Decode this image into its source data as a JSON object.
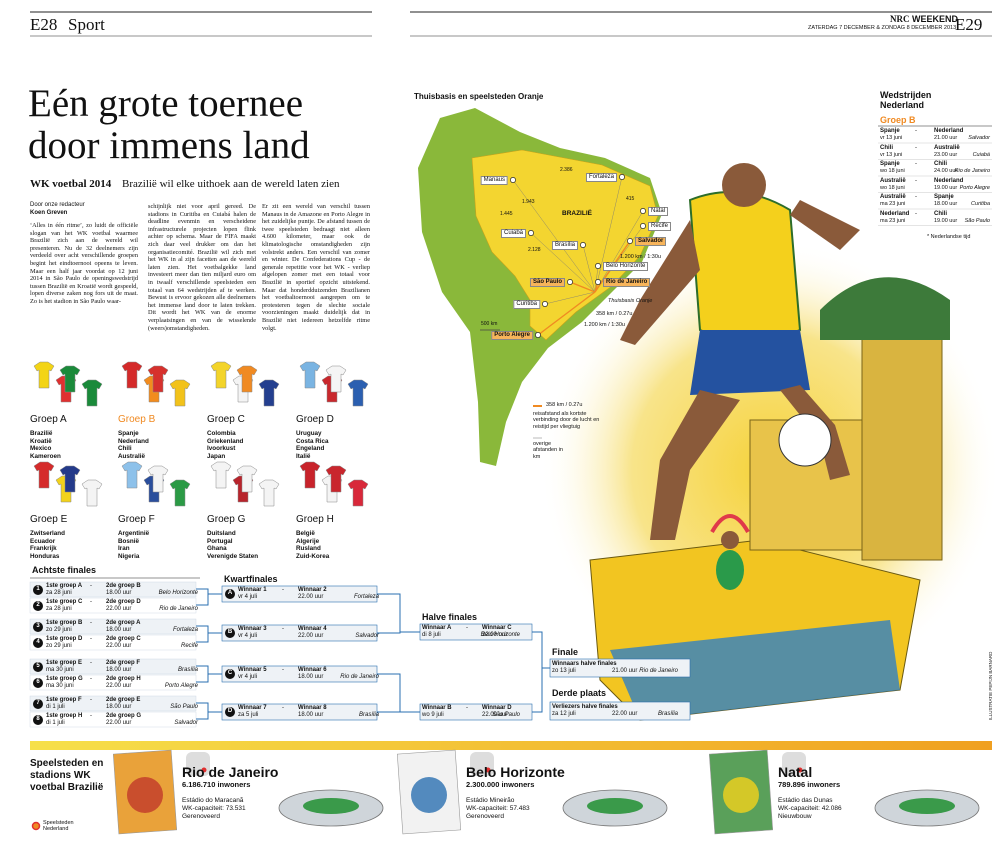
{
  "header": {
    "left_page": "E28",
    "left_section": "Sport",
    "brand_bold": "NRC",
    "brand": "WEEKEND",
    "date": "ZATERDAG 7 DECEMBER & ZONDAG 8 DECEMBER 2013",
    "right_page": "E29"
  },
  "article": {
    "title_line1": "Eén grote toernee",
    "title_line2": "door immens land",
    "kicker": "WK voetbal 2014",
    "subtitle": "Brazilië wil elke uithoek aan de wereld laten zien",
    "byline_intro": "Door onze redacteur",
    "author": "Koen Greven",
    "columns": [
      "‘Alles in één ritme’, zo luidt de officiële slogan van het WK voetbal waarmee Brazilië zich aan de wereld wil presenteren. Nu de 32 deelnemers zijn verdeeld over acht verschillende groepen begint het eindtoernooi opeens te leven. Maar een half jaar voordat op 12 juni 2014 in São Paulo de openingswedstrijd tussen Brazilië en Kroatië wordt gespeeld, lopen diverse zaken nog fors uit de maat. Zo is het stadion in São Paulo waar-",
      "schijnlijk niet voor april gereed. De stadions in Curitiba en Cuiabá halen de deadline evenmin en verscheidene infrastructurele projecten lopen flink achter op schema. Maar de FIFA maakt zich daar veel drukker om dan het organisatiecomité. Brazilië wil zich met het WK in al zijn facetten aan de wereld laten zien. Het voetbalgekke land investeert meer dan tien miljard euro om in twaalf verschillende speelsteden een totaal van 64 wedstrijden af te werken. Bewust is ervoor gekozen alle deelnemers het immense land door te laten trekken. Dit wordt het WK van de enorme verplaatsingen en van de wisselende (weers)omstandigheden.",
      "Er zit een wereld van verschil tussen Manaus in de Amazone en Porto Alegre in het zuidelijke puntje. De afstand tussen de twee speelsteden bedraagt niet alleen 4.600 kilometer, maar ook de klimatologische omstandigheden zijn volstrekt anders. Een verschil van zomer en winter. De Confederations Cup - de generale repetitie voor het WK - verliep afgelopen zomer met een totaal voor Brazilië in sportief opzicht uitstekend. Maar dat honderdduizenden Brazilianen het voetbaltoernooi aangrepen om te protesteren tegen de slechte sociale voorzieningen maakt duidelijk dat in Brazilië niet iedereen hetzelfde ritme volgt."
    ]
  },
  "groups": [
    {
      "title": "Groep A",
      "teams": [
        {
          "name": "Brazilië",
          "shirt": "#f3d416"
        },
        {
          "name": "Kroatië",
          "shirt": "#e03030"
        },
        {
          "name": "Mexico",
          "shirt": "#1b8a3a"
        },
        {
          "name": "Kameroen",
          "shirt": "#1a8a3a"
        }
      ]
    },
    {
      "title": "Groep B",
      "highlight": true,
      "teams": [
        {
          "name": "Spanje",
          "shirt": "#d42a2a"
        },
        {
          "name": "Nederland",
          "shirt": "#f28c1e"
        },
        {
          "name": "Chili",
          "shirt": "#d6312d"
        },
        {
          "name": "Australië",
          "shirt": "#f2c21a"
        }
      ]
    },
    {
      "title": "Groep C",
      "teams": [
        {
          "name": "Colombia",
          "shirt": "#f3d42a"
        },
        {
          "name": "Griekenland",
          "shirt": "#f4f4f4"
        },
        {
          "name": "Ivoorkust",
          "shirt": "#f08a22"
        },
        {
          "name": "Japan",
          "shirt": "#243f8f"
        }
      ]
    },
    {
      "title": "Groep D",
      "teams": [
        {
          "name": "Uruguay",
          "shirt": "#7ab4e2"
        },
        {
          "name": "Costa Rica",
          "shirt": "#c9282d"
        },
        {
          "name": "Engeland",
          "shirt": "#f5f5f5"
        },
        {
          "name": "Italië",
          "shirt": "#2b5fb0"
        }
      ]
    },
    {
      "title": "Groep E",
      "teams": [
        {
          "name": "Zwitserland",
          "shirt": "#d52b2b"
        },
        {
          "name": "Ecuador",
          "shirt": "#f2d21b"
        },
        {
          "name": "Frankrijk",
          "shirt": "#243a8a"
        },
        {
          "name": "Honduras",
          "shirt": "#f4f4f4"
        }
      ]
    },
    {
      "title": "Groep F",
      "teams": [
        {
          "name": "Argentinië",
          "shirt": "#8dc1ea"
        },
        {
          "name": "Bosnië",
          "shirt": "#2a4e9c"
        },
        {
          "name": "Iran",
          "shirt": "#f4f4f4"
        },
        {
          "name": "Nigeria",
          "shirt": "#2b9a45"
        }
      ]
    },
    {
      "title": "Groep G",
      "teams": [
        {
          "name": "Duitsland",
          "shirt": "#f4f4f4"
        },
        {
          "name": "Portugal",
          "shirt": "#b8242c"
        },
        {
          "name": "Ghana",
          "shirt": "#f4f4f4"
        },
        {
          "name": "Verenigde Staten",
          "shirt": "#f4f4f4"
        }
      ]
    },
    {
      "title": "Groep H",
      "teams": [
        {
          "name": "België",
          "shirt": "#c8232b"
        },
        {
          "name": "Algerije",
          "shirt": "#f4f4f4"
        },
        {
          "name": "Rusland",
          "shirt": "#c9262d"
        },
        {
          "name": "Zuid-Korea",
          "shirt": "#d8283a"
        }
      ]
    }
  ],
  "knockout": {
    "separator": "-",
    "round_of_16": {
      "title": "Achtste finales",
      "matches": [
        {
          "number": 1,
          "home": "1ste groep A",
          "away": "2de groep B",
          "date": "za 28 juni",
          "time": "18.00 uur",
          "venue": "Belo Horizonte"
        },
        {
          "number": 2,
          "home": "1ste groep C",
          "away": "2de groep D",
          "date": "za 28 juni",
          "time": "22.00 uur",
          "venue": "Rio de Janeiro"
        },
        {
          "number": 3,
          "home": "1ste groep B",
          "away": "2de groep A",
          "date": "zo 29 juni",
          "time": "18.00 uur",
          "venue": "Fortaleza"
        },
        {
          "number": 4,
          "home": "1ste groep D",
          "away": "2de groep C",
          "date": "zo 29 juni",
          "time": "22.00 uur",
          "venue": "Recife"
        },
        {
          "number": 5,
          "home": "1ste groep E",
          "away": "2de groep F",
          "date": "ma 30 juni",
          "time": "18.00 uur",
          "venue": "Brasília"
        },
        {
          "number": 6,
          "home": "1ste groep G",
          "away": "2de groep H",
          "date": "ma 30 juni",
          "time": "22.00 uur",
          "venue": "Porto Alegre"
        },
        {
          "number": 7,
          "home": "1ste groep F",
          "away": "2de groep E",
          "date": "di 1 juli",
          "time": "18.00 uur",
          "venue": "São Paulo"
        },
        {
          "number": 8,
          "home": "1ste groep H",
          "away": "2de groep G",
          "date": "di 1 juli",
          "time": "22.00 uur",
          "venue": "Salvador"
        }
      ]
    },
    "quarter": {
      "title": "Kwartfinales",
      "matches": [
        {
          "number": "A",
          "home": "Winnaar 1",
          "away": "Winnaar 2",
          "date": "vr 4 juli",
          "time": "22.00 uur",
          "venue": "Fortaleza"
        },
        {
          "number": "B",
          "home": "Winnaar 3",
          "away": "Winnaar 4",
          "date": "vr 4 juli",
          "time": "22.00 uur",
          "venue": "Salvador"
        },
        {
          "number": "C",
          "home": "Winnaar 5",
          "away": "Winnaar 6",
          "date": "vr 4 juli",
          "time": "18.00 uur",
          "venue": "Rio de Janeiro"
        },
        {
          "number": "D",
          "home": "Winnaar 7",
          "away": "Winnaar 8",
          "date": "za 5 juli",
          "time": "18.00 uur",
          "venue": "Brasília"
        }
      ]
    },
    "semi": {
      "title": "Halve finales",
      "matches": [
        {
          "home": "Winnaar A",
          "away": "Winnaar C",
          "date": "di 8 juli",
          "time": "22.00 uur",
          "venue": "Belo Horizonte"
        },
        {
          "home": "Winnaar B",
          "away": "Winnaar D",
          "date": "wo 9 juli",
          "time": "22.00 uur",
          "venue": "São Paulo"
        }
      ]
    },
    "final": {
      "title": "Finale",
      "match": {
        "home": "Winnaars halve finales",
        "date": "zo 13 juli",
        "time": "21.00 uur",
        "venue": "Rio de Janeiro"
      }
    },
    "third": {
      "title": "Derde plaats",
      "match": {
        "home": "Verliezers halve finales",
        "date": "za 12 juli",
        "time": "22.00 uur",
        "venue": "Brasília"
      }
    }
  },
  "map": {
    "title": "Thuisbasis en speelsteden Oranje",
    "country": "BRAZILIË",
    "scale": "500 km",
    "cities": [
      {
        "name": "Manaus"
      },
      {
        "name": "Fortaleza"
      },
      {
        "name": "Natal"
      },
      {
        "name": "Recife"
      },
      {
        "name": "Salvador",
        "oranje": true
      },
      {
        "name": "Brasília"
      },
      {
        "name": "Cuiabá"
      },
      {
        "name": "Belo Horizonte"
      },
      {
        "name": "Rio de Janeiro",
        "oranje": true
      },
      {
        "name": "São Paulo",
        "oranje": true
      },
      {
        "name": "Curitiba"
      },
      {
        "name": "Porto Alegre",
        "oranje": true
      }
    ],
    "distances": [
      "2.386",
      "1.943",
      "1.445",
      "2.128",
      "415"
    ],
    "routes": [
      "1.200 km / 1:30u",
      "358 km / 0.27u",
      "1.200 km / 1:30u"
    ],
    "base": "Thuisbasis Oranje",
    "legend": {
      "flight_sample": "358 km / 0.27u",
      "flight_text": "reisafstand als kortste verbinding door de lucht en reistijd per vliegtuig",
      "other_text": "overige afstanden in km"
    }
  },
  "netherlands": {
    "title": "Wedstrijden Nederland",
    "group": "Groep B",
    "separator": "-",
    "matches": [
      {
        "home": "Spanje",
        "away": "Nederland",
        "date": "vr 13 juni",
        "time": "21.00 uur",
        "venue": "Salvador"
      },
      {
        "home": "Chili",
        "away": "Australië",
        "date": "vr 13 juni",
        "time": "23.00 uur",
        "venue": "Cuiabá"
      },
      {
        "home": "Spanje",
        "away": "Chili",
        "date": "wo 18 juni",
        "time": "24.00 uur",
        "venue": "Rio de Janeiro"
      },
      {
        "home": "Australië",
        "away": "Nederland",
        "date": "wo 18 juni",
        "time": "19.00 uur",
        "venue": "Porto Alegre"
      },
      {
        "home": "Australië",
        "away": "Spanje",
        "date": "ma 23 juni",
        "time": "18.00 uur",
        "venue": "Curitiba"
      },
      {
        "home": "Nederland",
        "away": "Chili",
        "date": "ma 23 juni",
        "time": "19.00 uur",
        "venue": "São Paulo"
      }
    ],
    "note": "* Nederlandse tijd",
    "credit": "ILLUSTRATIE PEPIJN BARNARD"
  },
  "stadiums": {
    "title": "Speelsteden en stadions WK voetbal Brazilië",
    "legend": "Speelsteden Nederland",
    "cities": [
      {
        "city": "Rio de Janeiro",
        "population": "6.186.710 inwoners",
        "stadium": "Estádio do Maracanã",
        "capacity": "WK-capaciteit: 73.531",
        "status": "Gerenoveerd"
      },
      {
        "city": "Belo Horizonte",
        "population": "2.300.000 inwoners",
        "stadium": "Estádio Mineirão",
        "capacity": "WK-capaciteit: 57.483",
        "status": "Gerenoveerd"
      },
      {
        "city": "Natal",
        "population": "789.896 inwoners",
        "stadium": "Estádio das Dunas",
        "capacity": "WK-capaciteit: 42.086",
        "status": "Nieuwbouw"
      }
    ]
  }
}
